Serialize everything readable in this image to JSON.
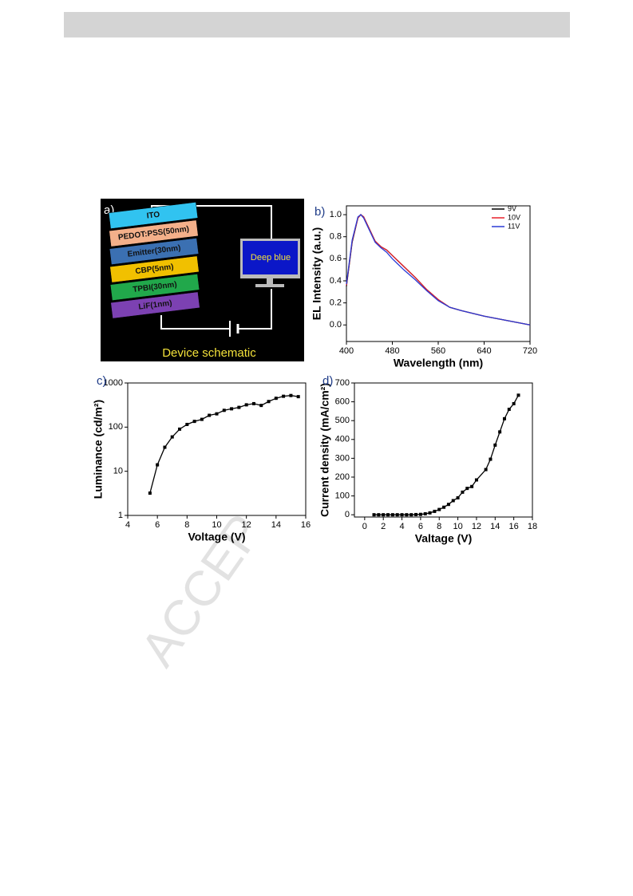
{
  "watermark": "ACCEP",
  "panel_a": {
    "label": "a)",
    "layers": [
      {
        "name": "ITO",
        "color": "#31c3f0"
      },
      {
        "name": "PEDOT:PSS(50nm)",
        "color": "#f4b08a"
      },
      {
        "name": "Emitter(30nm)",
        "color": "#3b70b2"
      },
      {
        "name": "CBP(5nm)",
        "color": "#f1c000"
      },
      {
        "name": "TPBI(30nm)",
        "color": "#21a84b"
      },
      {
        "name": "LiF(1nm)",
        "color": "#7c41b2"
      }
    ],
    "monitor_text": "Deep blue",
    "caption": "Device schematic"
  },
  "chart_data": [
    {
      "type": "line",
      "panel_label": "b)",
      "xlabel": "Wavelength (nm)",
      "ylabel": "EL Intensity (a.u.)",
      "xlim": [
        400,
        720
      ],
      "ylim": [
        -0.15,
        1.08
      ],
      "xticks": [
        400,
        480,
        560,
        640,
        720
      ],
      "yticks": [
        {
          "value": 0,
          "label": "0.0"
        },
        {
          "value": 0.2,
          "label": "0.2"
        },
        {
          "value": 0.4,
          "label": "0.4"
        },
        {
          "value": 0.6,
          "label": "0.6"
        },
        {
          "value": 0.8,
          "label": "0.8"
        },
        {
          "value": 1,
          "label": "1.0"
        }
      ],
      "legend": "upper right",
      "markers": false,
      "log_y": false,
      "x": [
        400,
        410,
        420,
        425,
        430,
        440,
        450,
        460,
        470,
        480,
        490,
        500,
        520,
        540,
        560,
        580,
        600,
        640,
        680,
        720
      ],
      "series": [
        {
          "name": "9V",
          "color": "#000000",
          "values": [
            0.35,
            0.75,
            0.97,
            1.0,
            0.98,
            0.87,
            0.76,
            0.71,
            0.68,
            0.63,
            0.58,
            0.53,
            0.43,
            0.32,
            0.23,
            0.16,
            0.13,
            0.08,
            0.04,
            0.0
          ]
        },
        {
          "name": "10V",
          "color": "#e8202a",
          "values": [
            0.36,
            0.76,
            0.97,
            1.0,
            0.98,
            0.87,
            0.76,
            0.71,
            0.68,
            0.63,
            0.58,
            0.53,
            0.43,
            0.32,
            0.23,
            0.16,
            0.13,
            0.08,
            0.04,
            0.0
          ]
        },
        {
          "name": "11V",
          "color": "#2a3bd6",
          "values": [
            0.37,
            0.77,
            0.98,
            1.0,
            0.97,
            0.86,
            0.75,
            0.7,
            0.66,
            0.6,
            0.55,
            0.5,
            0.41,
            0.31,
            0.22,
            0.16,
            0.13,
            0.08,
            0.04,
            0.0
          ]
        }
      ]
    },
    {
      "type": "line",
      "panel_label": "c)",
      "xlabel": "Voltage (V)",
      "ylabel": "Luminance (cd/m²)",
      "xlim": [
        4,
        16
      ],
      "ylim": [
        1,
        1000
      ],
      "xticks": [
        4,
        6,
        8,
        10,
        12,
        14,
        16
      ],
      "yticks": [
        1,
        10,
        100,
        1000
      ],
      "markers": true,
      "log_y": true,
      "x": [
        5.5,
        6,
        6.5,
        7,
        7.5,
        8,
        8.5,
        9,
        9.5,
        10,
        10.5,
        11,
        11.5,
        12,
        12.5,
        13,
        13.5,
        14,
        14.5,
        15,
        15.5
      ],
      "series": [
        {
          "name": "Luminance",
          "color": "#000000",
          "values": [
            3.2,
            14,
            35,
            60,
            90,
            115,
            135,
            150,
            185,
            200,
            240,
            260,
            280,
            320,
            340,
            310,
            380,
            450,
            500,
            520,
            490
          ]
        }
      ]
    },
    {
      "type": "line",
      "panel_label": "d)",
      "xlabel": "Valtage (V)",
      "ylabel": "Current density (mA/cm²)",
      "xlim": [
        -1.1,
        18
      ],
      "ylim": [
        -12,
        700
      ],
      "xticks": [
        0,
        2,
        4,
        6,
        8,
        10,
        12,
        14,
        16,
        18
      ],
      "yticks": [
        0,
        100,
        200,
        300,
        400,
        500,
        600,
        700
      ],
      "markers": true,
      "log_y": false,
      "x": [
        1,
        1.5,
        2,
        2.5,
        3,
        3.5,
        4,
        4.5,
        5,
        5.5,
        6,
        6.5,
        7,
        7.5,
        8,
        8.5,
        9,
        9.5,
        10,
        10.5,
        11,
        11.5,
        12,
        13,
        13.5,
        14,
        14.5,
        15,
        15.5,
        16,
        16.5
      ],
      "series": [
        {
          "name": "Current density",
          "color": "#000000",
          "values": [
            0,
            0,
            0,
            0,
            0,
            0,
            0,
            0,
            0,
            1,
            2,
            5,
            10,
            18,
            28,
            40,
            55,
            75,
            90,
            120,
            140,
            150,
            185,
            240,
            295,
            370,
            440,
            510,
            560,
            590,
            635
          ]
        }
      ]
    }
  ]
}
